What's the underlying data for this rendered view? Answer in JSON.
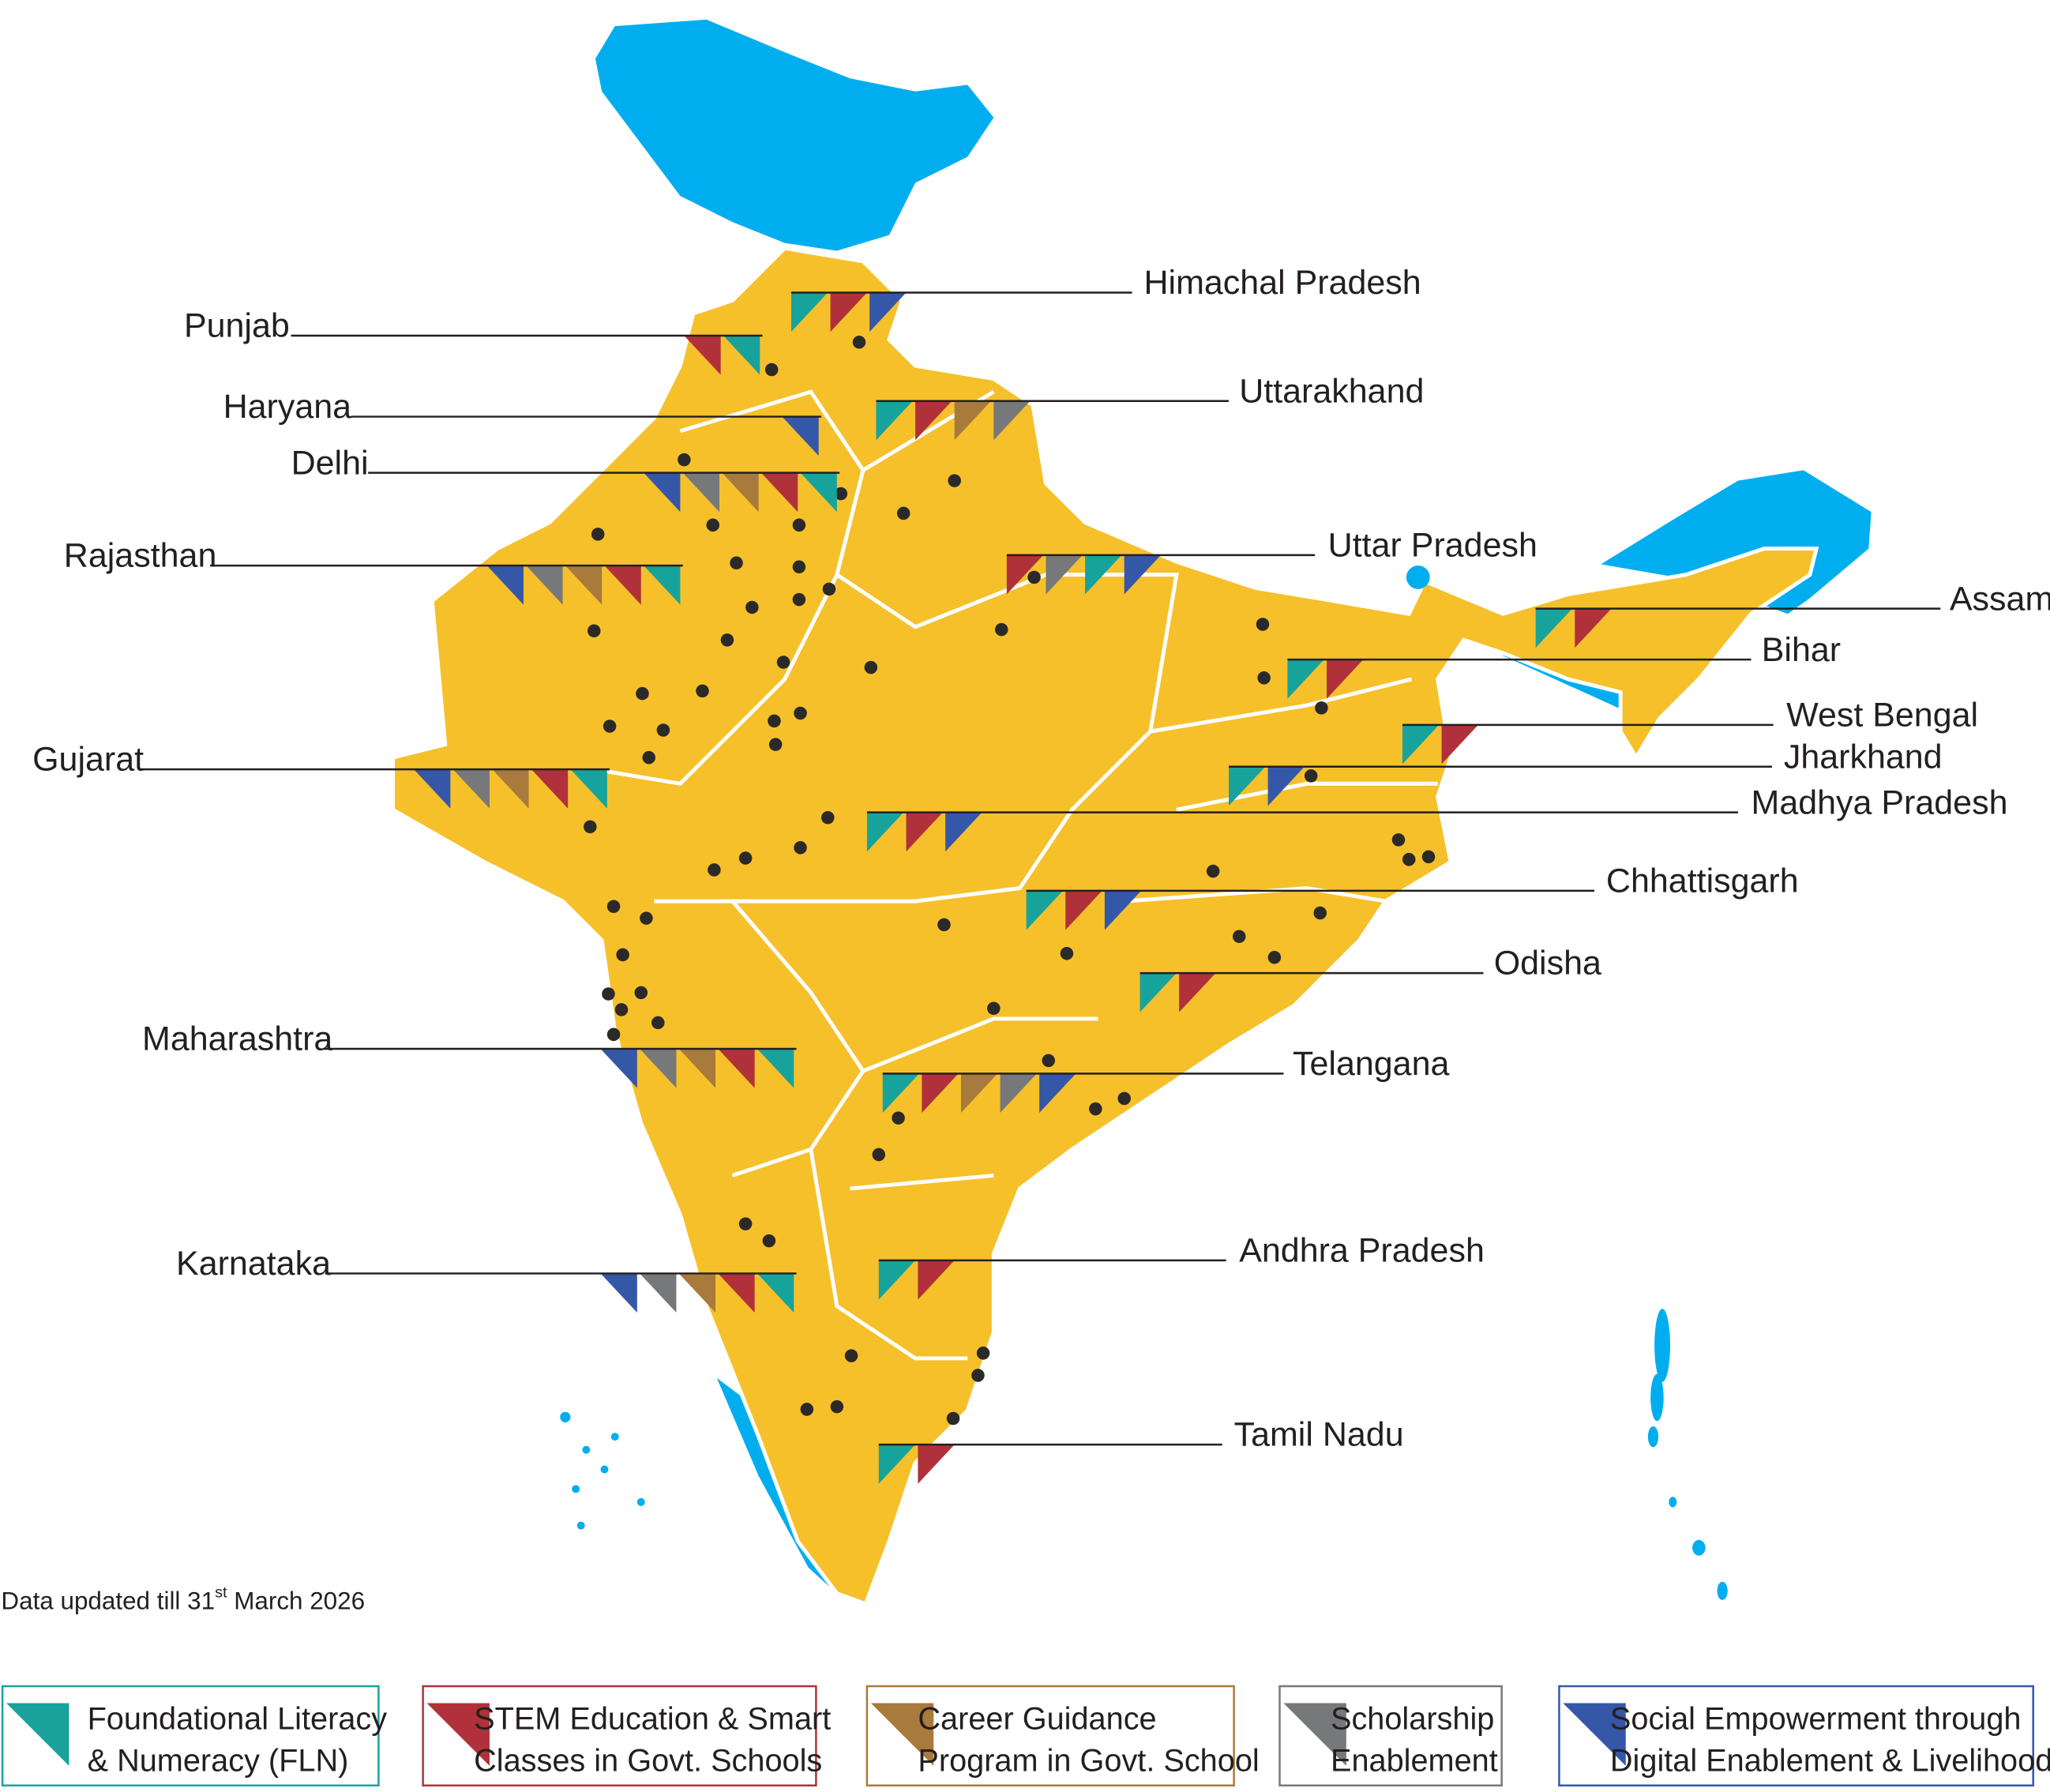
{
  "states": [
    {
      "name": "Himachal Pradesh",
      "flags": [
        "#17a39b",
        "#b0313a",
        "#3557a8"
      ]
    },
    {
      "name": "Punjab",
      "flags": [
        "#b0313a",
        "#17a39b"
      ]
    },
    {
      "name": "Haryana",
      "flags": [
        "#3557a8"
      ]
    },
    {
      "name": "Delhi",
      "flags": [
        "#3557a8",
        "#76787a",
        "#a87a3c",
        "#b0313a",
        "#17a39b"
      ]
    },
    {
      "name": "Uttarakhand",
      "flags": [
        "#17a39b",
        "#b0313a",
        "#a87a3c",
        "#76787a"
      ]
    },
    {
      "name": "Rajasthan",
      "flags": [
        "#3557a8",
        "#76787a",
        "#a87a3c",
        "#b0313a",
        "#17a39b"
      ]
    },
    {
      "name": "Uttar Pradesh",
      "flags": [
        "#b0313a",
        "#76787a",
        "#17a39b",
        "#3557a8"
      ]
    },
    {
      "name": "Assam",
      "flags": [
        "#17a39b",
        "#b0313a"
      ]
    },
    {
      "name": "Bihar",
      "flags": [
        "#17a39b",
        "#b0313a"
      ]
    },
    {
      "name": "West Bengal",
      "flags": [
        "#17a39b",
        "#b0313a"
      ]
    },
    {
      "name": "Jharkhand",
      "flags": [
        "#17a39b",
        "#3557a8"
      ]
    },
    {
      "name": "Gujarat",
      "flags": [
        "#3557a8",
        "#76787a",
        "#a87a3c",
        "#b0313a",
        "#17a39b"
      ]
    },
    {
      "name": "Madhya Pradesh",
      "flags": [
        "#17a39b",
        "#b0313a",
        "#3557a8"
      ]
    },
    {
      "name": "Chhattisgarh",
      "flags": [
        "#17a39b",
        "#b0313a",
        "#3557a8"
      ]
    },
    {
      "name": "Odisha",
      "flags": [
        "#17a39b",
        "#b0313a"
      ]
    },
    {
      "name": "Maharashtra",
      "flags": [
        "#3557a8",
        "#76787a",
        "#a87a3c",
        "#b0313a",
        "#17a39b"
      ]
    },
    {
      "name": "Telangana",
      "flags": [
        "#17a39b",
        "#b0313a",
        "#a87a3c",
        "#76787a",
        "#3557a8"
      ]
    },
    {
      "name": "Karnataka",
      "flags": [
        "#3557a8",
        "#76787a",
        "#a87a3c",
        "#b0313a",
        "#17a39b"
      ]
    },
    {
      "name": "Andhra Pradesh",
      "flags": [
        "#17a39b",
        "#b0313a"
      ]
    },
    {
      "name": "Tamil Nadu",
      "flags": [
        "#17a39b",
        "#b0313a"
      ]
    }
  ],
  "note": {
    "text": "Data updated till 31",
    "superscript": "st",
    "rest": " March 2026"
  },
  "legend": [
    {
      "color": "#17a39b",
      "lines": [
        "Foundational Literacy",
        "& Numeracy (FLN)"
      ]
    },
    {
      "color": "#b0313a",
      "lines": [
        "STEM Education & Smart",
        "Classes in Govt. Schools"
      ]
    },
    {
      "color": "#a87a3c",
      "lines": [
        "Career Guidance",
        "Program in Govt. School"
      ]
    },
    {
      "color": "#76787a",
      "lines": [
        "Scholarship",
        "Enablement"
      ]
    },
    {
      "color": "#3557a8",
      "lines": [
        "Social Empowerment through",
        "Digital Enablement & Livelihood"
      ]
    }
  ]
}
